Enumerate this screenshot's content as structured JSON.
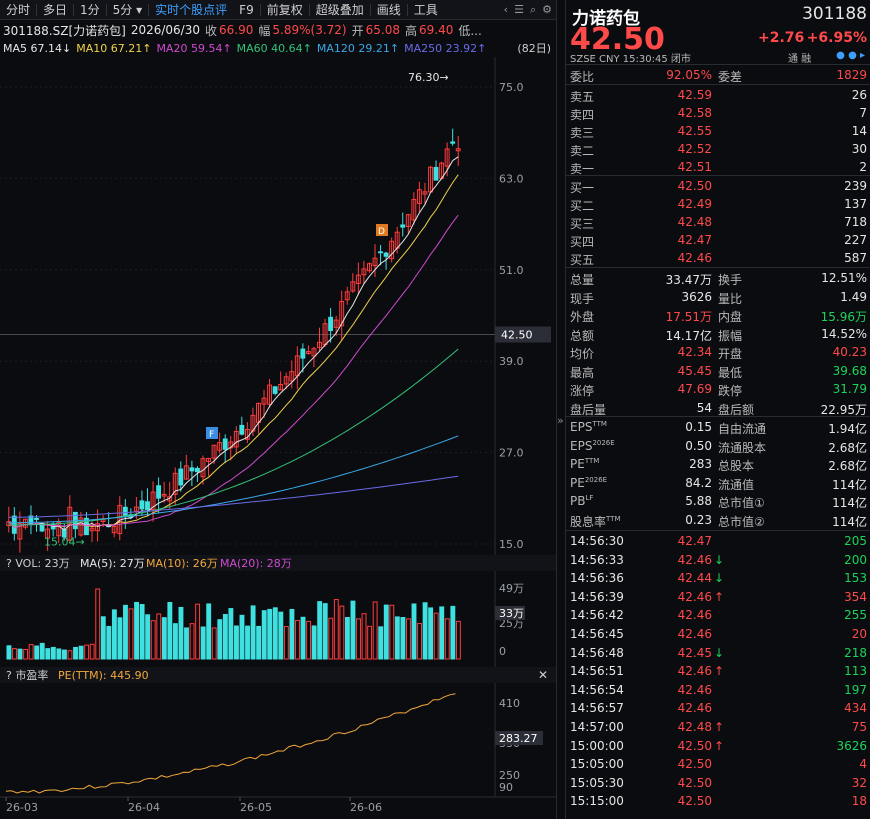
{
  "toolbar": {
    "items": [
      "分时",
      "多日",
      "1分",
      "5分 ▾",
      "实时个股点评",
      "F9",
      "前复权",
      "超级叠加",
      "画线",
      "工具"
    ]
  },
  "info": {
    "code": "301188.SZ[力诺药包]",
    "date": "2026/06/30",
    "close_label": "收",
    "close": "66.90",
    "chg_label": "幅",
    "chg": "5.89%(3.72)",
    "open_label": "开",
    "open": "65.08",
    "high_label": "高",
    "high": "69.40",
    "low_label": "低..."
  },
  "ma": [
    {
      "label": "MA5",
      "value": "67.14↓",
      "color": "#e6e6e6"
    },
    {
      "label": "MA10",
      "value": "67.21↑",
      "color": "#f2d24a"
    },
    {
      "label": "MA20",
      "value": "59.54↑",
      "color": "#d04ad0"
    },
    {
      "label": "MA60",
      "value": "40.64↑",
      "color": "#33c27a"
    },
    {
      "label": "MA120",
      "value": "29.21↑",
      "color": "#3aa8e8"
    },
    {
      "label": "MA250",
      "value": "23.92↑",
      "color": "#6a6ae8"
    }
  ],
  "ma_period": "(82日)",
  "price_axis": [
    "75.0",
    "63.0",
    "51.0",
    "39.0",
    "27.0",
    "15.0"
  ],
  "current_price_tag": "42.50",
  "high_marker": "76.30→",
  "low_marker": "15.04→",
  "vol_bar": {
    "title": "VOL: 23万",
    "ma5": "MA(5): 27万",
    "ma10": "MA(10): 26万",
    "ma20": "MA(20): 28万"
  },
  "vol_axis": [
    "49万",
    "25万",
    "0"
  ],
  "vol_tag": "33万",
  "pe_bar": {
    "title": "市盈率",
    "pe": "PE(TTM): 445.90"
  },
  "pe_axis": [
    "410",
    "330",
    "250",
    "90"
  ],
  "pe_tag": "283.27",
  "date_axis": [
    "26-03",
    "26-04",
    "26-05",
    "26-06"
  ],
  "quote": {
    "name": "力诺药包",
    "code": "301188",
    "price": "42.50",
    "change": "+2.76",
    "change_pct": "+6.95%",
    "meta": "SZSE  CNY  15:30:45  闭市",
    "meta_right": "通  融",
    "weibi_label": "委比",
    "weibi": "92.05%",
    "weicha_label": "委差",
    "weicha": "1829",
    "asks": [
      {
        "label": "卖五",
        "price": "42.59",
        "vol": "26"
      },
      {
        "label": "卖四",
        "price": "42.58",
        "vol": "7"
      },
      {
        "label": "卖三",
        "price": "42.55",
        "vol": "14"
      },
      {
        "label": "卖二",
        "price": "42.52",
        "vol": "30"
      },
      {
        "label": "卖一",
        "price": "42.51",
        "vol": "2"
      }
    ],
    "bids": [
      {
        "label": "买一",
        "price": "42.50",
        "vol": "239"
      },
      {
        "label": "买二",
        "price": "42.49",
        "vol": "137"
      },
      {
        "label": "买三",
        "price": "42.48",
        "vol": "718"
      },
      {
        "label": "买四",
        "price": "42.47",
        "vol": "227"
      },
      {
        "label": "买五",
        "price": "42.46",
        "vol": "587"
      }
    ],
    "stats": [
      {
        "l1": "总量",
        "v1": "33.47万",
        "c1": "white",
        "l2": "换手",
        "v2": "12.51%",
        "c2": "white"
      },
      {
        "l1": "现手",
        "v1": "3626",
        "c1": "white",
        "l2": "量比",
        "v2": "1.49",
        "c2": "white"
      },
      {
        "l1": "外盘",
        "v1": "17.51万",
        "c1": "red",
        "l2": "内盘",
        "v2": "15.96万",
        "c2": "green"
      },
      {
        "l1": "总额",
        "v1": "14.17亿",
        "c1": "white",
        "l2": "振幅",
        "v2": "14.52%",
        "c2": "white"
      },
      {
        "l1": "均价",
        "v1": "42.34",
        "c1": "red",
        "l2": "开盘",
        "v2": "40.23",
        "c2": "red"
      },
      {
        "l1": "最高",
        "v1": "45.45",
        "c1": "red",
        "l2": "最低",
        "v2": "39.68",
        "c2": "green"
      },
      {
        "l1": "涨停",
        "v1": "47.69",
        "c1": "red",
        "l2": "跌停",
        "v2": "31.79",
        "c2": "green"
      },
      {
        "l1": "盘后量",
        "v1": "54",
        "c1": "white",
        "l2": "盘后额",
        "v2": "22.95万",
        "c2": "white"
      }
    ],
    "fundamentals": [
      {
        "l1": "EPS",
        "s1": "TTM",
        "v1": "0.15",
        "l2": "自由流通",
        "v2": "1.94亿"
      },
      {
        "l1": "EPS",
        "s1": "2026E",
        "v1": "0.50",
        "l2": "流通股本",
        "v2": "2.68亿"
      },
      {
        "l1": "PE",
        "s1": "TTM",
        "v1": "283",
        "l2": "总股本",
        "v2": "2.68亿"
      },
      {
        "l1": "PE",
        "s1": "2026E",
        "v1": "84.2",
        "l2": "流通值",
        "v2": "114亿"
      },
      {
        "l1": "PB",
        "s1": "LF",
        "v1": "5.88",
        "l2": "总市值①",
        "v2": "114亿"
      },
      {
        "l1": "股息率",
        "s1": "TTM",
        "v1": "0.23",
        "l2": "总市值②",
        "v2": "114亿"
      }
    ],
    "ticks": [
      {
        "time": "14:56:30",
        "price": "42.47",
        "arrow": "",
        "vol": "205",
        "vc": "green"
      },
      {
        "time": "14:56:33",
        "price": "42.46",
        "arrow": "↓",
        "vol": "200",
        "vc": "green"
      },
      {
        "time": "14:56:36",
        "price": "42.44",
        "arrow": "↓",
        "vol": "153",
        "vc": "green"
      },
      {
        "time": "14:56:39",
        "price": "42.46",
        "arrow": "↑",
        "vol": "354",
        "vc": "red"
      },
      {
        "time": "14:56:42",
        "price": "42.46",
        "arrow": "",
        "vol": "255",
        "vc": "green"
      },
      {
        "time": "14:56:45",
        "price": "42.46",
        "arrow": "",
        "vol": "20",
        "vc": "red"
      },
      {
        "time": "14:56:48",
        "price": "42.45",
        "arrow": "↓",
        "vol": "218",
        "vc": "green"
      },
      {
        "time": "14:56:51",
        "price": "42.46",
        "arrow": "↑",
        "vol": "113",
        "vc": "green"
      },
      {
        "time": "14:56:54",
        "price": "42.46",
        "arrow": "",
        "vol": "197",
        "vc": "green"
      },
      {
        "time": "14:56:57",
        "price": "42.46",
        "arrow": "",
        "vol": "434",
        "vc": "red"
      },
      {
        "time": "14:57:00",
        "price": "42.48",
        "arrow": "↑",
        "vol": "75",
        "vc": "red"
      },
      {
        "time": "15:00:00",
        "price": "42.50",
        "arrow": "↑",
        "vol": "3626",
        "vc": "green"
      },
      {
        "time": "15:05:00",
        "price": "42.50",
        "arrow": "",
        "vol": "4",
        "vc": "red"
      },
      {
        "time": "15:05:30",
        "price": "42.50",
        "arrow": "",
        "vol": "32",
        "vc": "red"
      },
      {
        "time": "15:15:00",
        "price": "42.50",
        "arrow": "",
        "vol": "18",
        "vc": "red"
      }
    ]
  }
}
